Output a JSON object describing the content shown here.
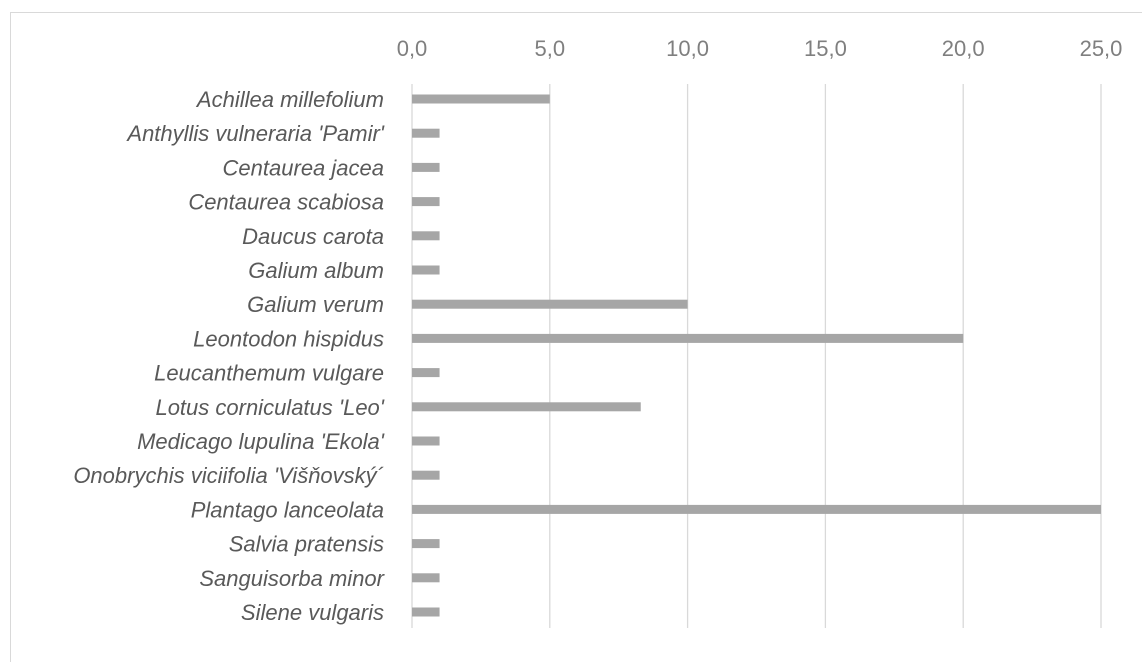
{
  "chart_data": {
    "type": "bar",
    "orientation": "horizontal",
    "title": "",
    "xlabel": "",
    "ylabel": "",
    "categories": [
      "Achillea millefolium",
      "Anthyllis vulneraria 'Pamir'",
      "Centaurea jacea",
      "Centaurea scabiosa",
      "Daucus carota",
      "Galium album",
      "Galium verum",
      "Leontodon hispidus",
      "Leucanthemum vulgare",
      "Lotus corniculatus 'Leo'",
      "Medicago lupulina 'Ekola'",
      "Onobrychis viciifolia 'Višňovský´",
      "Plantago lanceolata",
      "Salvia pratensis",
      "Sanguisorba minor",
      "Silene vulgaris"
    ],
    "values": [
      5.0,
      1.0,
      1.0,
      1.0,
      1.0,
      1.0,
      10.0,
      20.0,
      1.0,
      8.3,
      1.0,
      1.0,
      25.0,
      1.0,
      1.0,
      1.0
    ],
    "xlim": [
      0,
      25
    ],
    "x_ticks": [
      0,
      5,
      10,
      15,
      20,
      25
    ],
    "x_tick_labels": [
      "0,0",
      "5,0",
      "10,0",
      "15,0",
      "20,0",
      "25,0"
    ],
    "axis_position": "top",
    "grid": true,
    "bar_color": "#a6a6a6",
    "grid_color": "#d9d9d9",
    "legend": "none"
  }
}
